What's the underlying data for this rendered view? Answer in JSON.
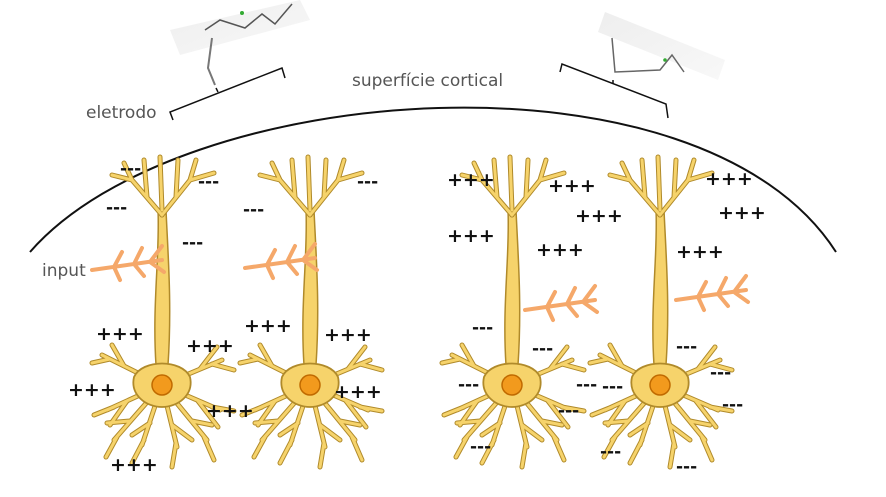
{
  "labels": {
    "surface": "superfície cortical",
    "electrode": "eletrodo",
    "input": "input"
  },
  "charges": {
    "left_pair": [
      "---",
      "---",
      "---",
      "---",
      "---",
      "---",
      "+++",
      "+++",
      "+++",
      "+++",
      "+++",
      "+++",
      "+++",
      "+++"
    ],
    "right_pair": [
      "+++",
      "+++",
      "+++",
      "+++",
      "+++",
      "+++",
      "+++",
      "+++",
      "---",
      "---",
      "---",
      "---",
      "---",
      "---",
      "---",
      "---",
      "---",
      "---",
      "---",
      "---"
    ]
  },
  "colors": {
    "neuron_fill": "#f6d36b",
    "neuron_stroke": "#b08a2a",
    "soma": "#f29a1d",
    "input_dendrite": "#f5a86a",
    "cortex_line": "#111111"
  }
}
